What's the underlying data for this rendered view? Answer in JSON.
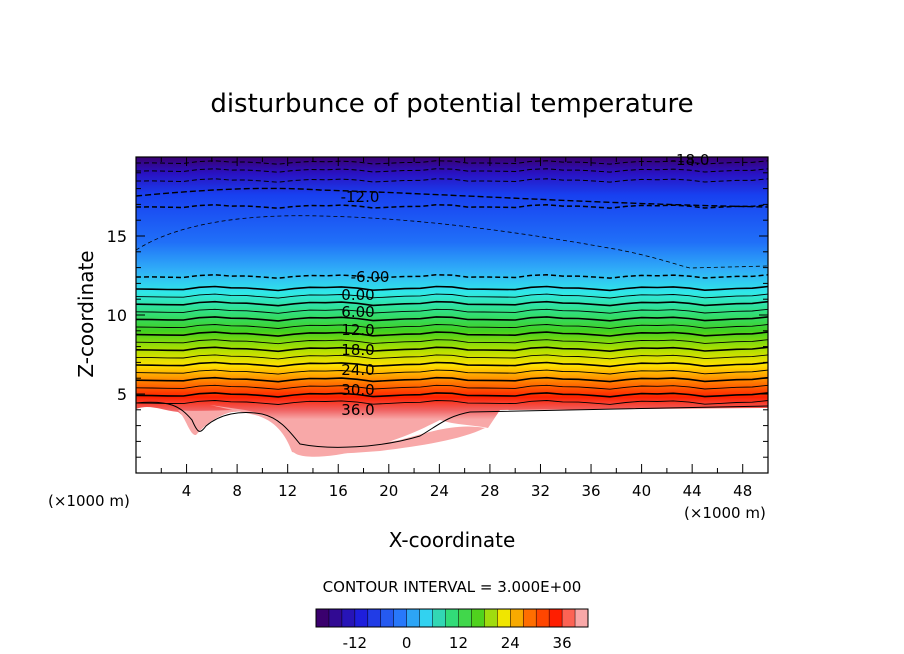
{
  "chart_data": {
    "type": "heatmap",
    "title": "disturbunce of potential temperature",
    "xlabel": "X-coordinate",
    "ylabel": "Z-coordinate",
    "x_unit_left": "(×1000 m)",
    "x_unit_right": "(×1000 m)",
    "xlim": [
      0,
      50
    ],
    "ylim": [
      0,
      20
    ],
    "x_ticks": [
      4,
      8,
      12,
      16,
      20,
      24,
      28,
      32,
      36,
      40,
      44,
      48
    ],
    "y_ticks": [
      5,
      10,
      15
    ],
    "contour_interval_text": "CONTOUR INTERVAL = 3.000E+00",
    "contour_labels": [
      "-18.0",
      "-12.0",
      "-6.00",
      "0.00",
      "6.00",
      "12.0",
      "18.0",
      "24.0",
      "30.0",
      "36.0"
    ],
    "colorbar": {
      "ticks": [
        -12,
        0,
        12,
        24,
        36
      ],
      "range": [
        -21,
        42
      ],
      "step": 3
    },
    "colors": {
      "cold_min": "#3a006e",
      "zero": "#40d0f0",
      "mid": "#30e040",
      "warm": "#ffe000",
      "hot": "#ff2000",
      "max": "#f8a0a0"
    }
  }
}
